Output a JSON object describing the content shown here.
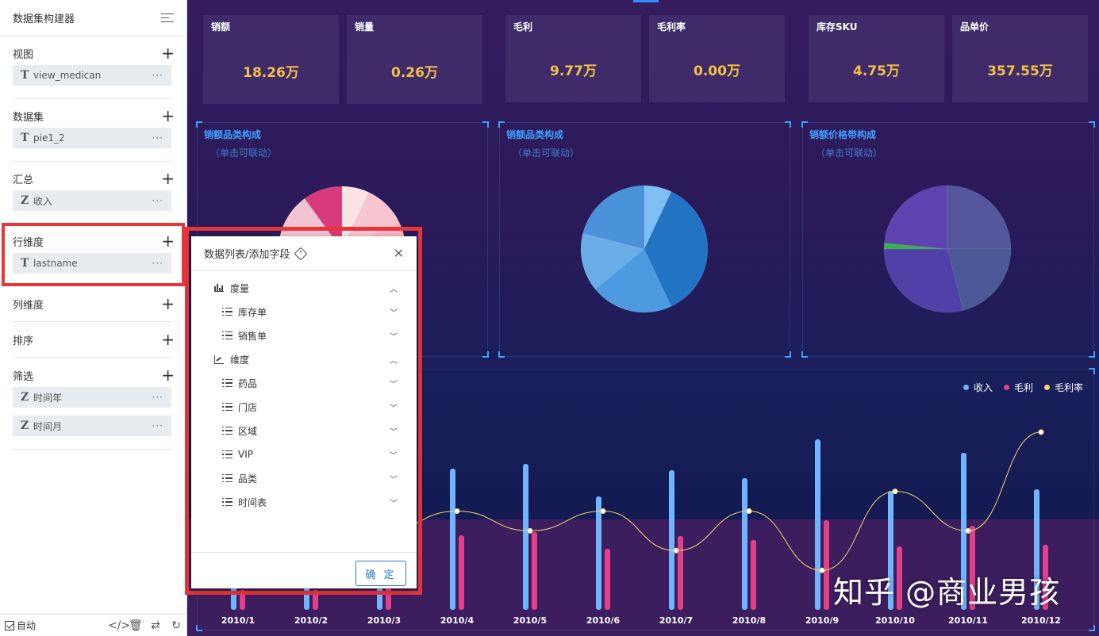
{
  "sidebar": {
    "title": "数据集构建器",
    "sections": {
      "view": {
        "label": "视图",
        "fields": [
          {
            "type": "T",
            "name": "view_medican"
          }
        ]
      },
      "dataset": {
        "label": "数据集",
        "fields": [
          {
            "type": "T",
            "name": "pie1_2"
          }
        ]
      },
      "summary": {
        "label": "汇总",
        "fields": [
          {
            "type": "Z",
            "name": "收入"
          }
        ]
      },
      "row_dim": {
        "label": "行维度",
        "fields": [
          {
            "type": "T",
            "name": "lastname"
          }
        ]
      },
      "col_dim": {
        "label": "列维度"
      },
      "sort": {
        "label": "排序"
      },
      "filter": {
        "label": "筛选",
        "fields": [
          {
            "type": "Z",
            "name": "时间年"
          },
          {
            "type": "Z",
            "name": "时间月"
          }
        ]
      }
    },
    "plus": "+",
    "dots": "···",
    "footer": {
      "auto_label": "自动"
    }
  },
  "kpis": [
    {
      "label": "销额",
      "value": "18.26万"
    },
    {
      "label": "销量",
      "value": "0.26万"
    },
    {
      "label": "毛利",
      "value": "9.77万"
    },
    {
      "label": "毛利率",
      "value": "0.00万"
    },
    {
      "label": "库存SKU",
      "value": "4.75万"
    },
    {
      "label": "品单价",
      "value": "357.55万"
    }
  ],
  "panels": [
    {
      "title": "销额品类构成",
      "subtitle": "（单击可联动）"
    },
    {
      "title": "销额品类构成",
      "subtitle": "（单击可联动）"
    },
    {
      "title": "销额价格带构成",
      "subtitle": "（单击可联动）"
    }
  ],
  "colors": {
    "income": "#6fb5ff",
    "profit": "#e0408a",
    "margin": "#f5d66e",
    "kpi_value": "#f4c242",
    "panel_title": "#3ea0ff",
    "highlight": "#e8353a"
  },
  "chart_data": [
    {
      "type": "pie",
      "title": "销额品类构成",
      "slices": [
        {
          "value": 7,
          "color": "#fbe3e6"
        },
        {
          "value": 11,
          "color": "#f7c6d0"
        },
        {
          "value": 10,
          "color": "#f4b6c6"
        },
        {
          "value": 62,
          "color": "#f2c3d2"
        },
        {
          "value": 10,
          "color": "#d83a7c"
        }
      ]
    },
    {
      "type": "pie",
      "title": "销额品类构成",
      "slices": [
        {
          "value": 7,
          "color": "#7fbdf5"
        },
        {
          "value": 36,
          "color": "#2273c4"
        },
        {
          "value": 21,
          "color": "#4c9be0"
        },
        {
          "value": 15,
          "color": "#6aaee8"
        },
        {
          "value": 21,
          "color": "#4a92da"
        }
      ]
    },
    {
      "type": "pie",
      "title": "销额价格带构成",
      "slices": [
        {
          "value": 25,
          "color": "#55569c"
        },
        {
          "value": 21,
          "color": "#4b5a96"
        },
        {
          "value": 29,
          "color": "#5140a8"
        },
        {
          "value": 1.5,
          "color": "#3bb04a"
        },
        {
          "value": 23.5,
          "color": "#5d44b0"
        }
      ]
    },
    {
      "type": "bar",
      "categories": [
        "2010/1",
        "2010/2",
        "2010/3",
        "2010/4",
        "2010/5",
        "2010/6",
        "2010/7",
        "2010/8",
        "2010/9",
        "2010/10",
        "2010/11",
        "2010/12"
      ],
      "series": [
        {
          "name": "收入",
          "values": [
            60,
            58,
            60,
            178,
            184,
            143,
            176,
            166,
            215,
            150,
            198,
            152
          ]
        },
        {
          "name": "毛利",
          "values": [
            25,
            25,
            28,
            94,
            98,
            77,
            93,
            88,
            113,
            80,
            106,
            82
          ]
        },
        {
          "name": "毛利率",
          "values": [
            0.5,
            0.5,
            0.52,
            0.53,
            0.52,
            0.53,
            0.51,
            0.53,
            0.5,
            0.54,
            0.52,
            0.57
          ]
        }
      ],
      "ylim": [
        0,
        230
      ],
      "y2lim": [
        0.48,
        0.58
      ],
      "legend": "top-right",
      "grid": false
    }
  ],
  "dialog": {
    "title": "数据列表/添加字段",
    "tree": [
      {
        "label": "度量",
        "level": 0,
        "icon": "bar-chart-icon",
        "expanded": true
      },
      {
        "label": "库存单",
        "level": 1,
        "icon": "list-icon",
        "expanded": false
      },
      {
        "label": "销售单",
        "level": 1,
        "icon": "list-icon",
        "expanded": false
      },
      {
        "label": "维度",
        "level": 0,
        "icon": "axis-icon",
        "expanded": true
      },
      {
        "label": "药品",
        "level": 1,
        "icon": "list-icon",
        "expanded": false
      },
      {
        "label": "门店",
        "level": 1,
        "icon": "list-icon",
        "expanded": false
      },
      {
        "label": "区域",
        "level": 1,
        "icon": "list-icon",
        "expanded": false
      },
      {
        "label": "VIP",
        "level": 1,
        "icon": "list-icon",
        "expanded": false
      },
      {
        "label": "品类",
        "level": 1,
        "icon": "list-icon",
        "expanded": false
      },
      {
        "label": "时间表",
        "level": 1,
        "icon": "list-icon",
        "expanded": false
      }
    ],
    "confirm_label": "确 定"
  },
  "watermark": "知乎 @商业男孩"
}
